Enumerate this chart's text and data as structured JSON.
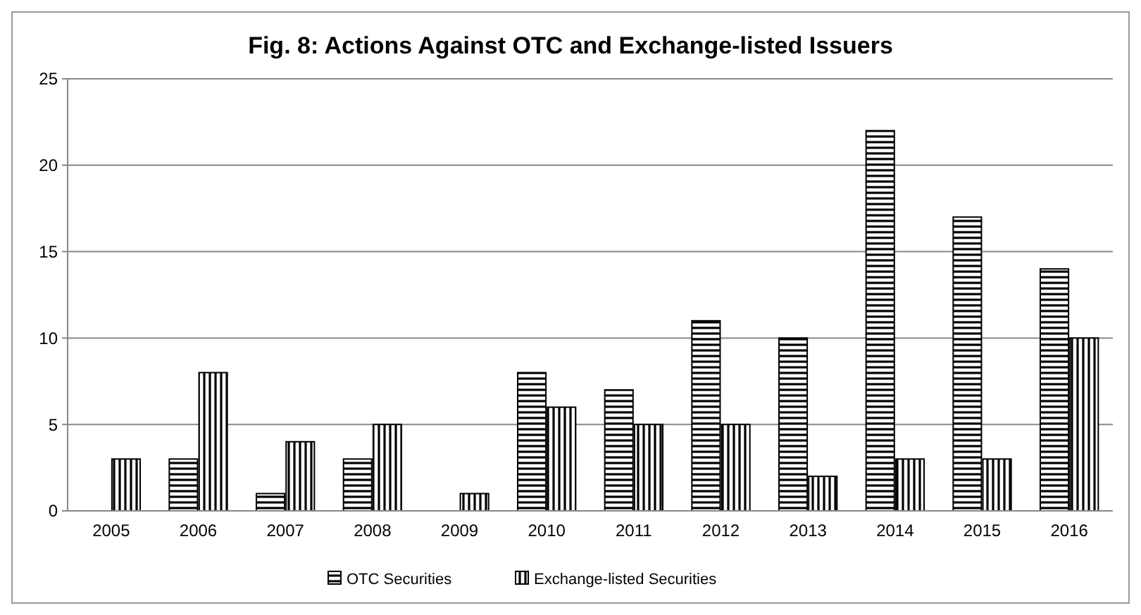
{
  "chart_data": {
    "type": "bar",
    "title": "Fig. 8: Actions Against OTC and Exchange-listed Issuers",
    "categories": [
      "2005",
      "2006",
      "2007",
      "2008",
      "2009",
      "2010",
      "2011",
      "2012",
      "2013",
      "2014",
      "2015",
      "2016"
    ],
    "series": [
      {
        "name": "OTC Securities",
        "color": "#000000",
        "values": [
          0,
          3,
          1,
          3,
          0,
          8,
          7,
          11,
          10,
          22,
          17,
          14
        ]
      },
      {
        "name": "Exchange-listed Securities",
        "color": "#000000",
        "values": [
          3,
          8,
          4,
          5,
          1,
          6,
          5,
          5,
          2,
          3,
          3,
          10
        ]
      }
    ],
    "ylim": [
      0,
      25
    ],
    "yticks": [
      0,
      5,
      10,
      15,
      20,
      25
    ],
    "grid": "y",
    "legend": "bottom"
  }
}
